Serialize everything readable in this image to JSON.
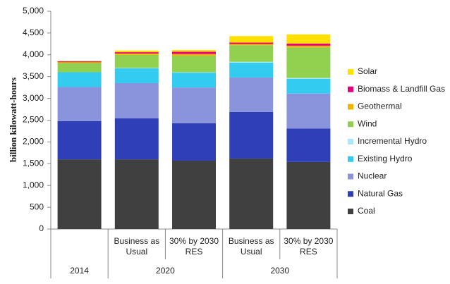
{
  "chart_data": {
    "type": "stacked_bar",
    "y_label": "billion kilowatt-hours",
    "categories": [
      null,
      "Business as Usual",
      "30% by 2030 RES",
      "Business as Usual",
      "30% by 2030 RES"
    ],
    "groups": [
      {
        "name": "2014",
        "count": 1
      },
      {
        "name": "2020",
        "count": 2
      },
      {
        "name": "2030",
        "count": 2
      }
    ],
    "ylim": [
      0,
      5000
    ],
    "yticks": [
      0,
      500,
      {
        "value": 1000,
        "label": "1,000"
      },
      {
        "value": 1500,
        "label": "1,500"
      },
      {
        "value": 2000,
        "label": "2,000"
      },
      {
        "value": 2500,
        "label": "2,500"
      },
      {
        "value": 3000,
        "label": "3,000"
      },
      {
        "value": 3500,
        "label": "3,500"
      },
      {
        "value": 4000,
        "label": "4,000"
      },
      {
        "value": 4500,
        "label": "4,500"
      },
      {
        "value": 5000,
        "label": "5,000"
      }
    ],
    "series": [
      {
        "name": "Coal",
        "color": "#404040",
        "values": [
          1600,
          1600,
          1570,
          1620,
          1540
        ]
      },
      {
        "name": "Natural Gas",
        "color": "#2e3fb8",
        "values": [
          880,
          940,
          860,
          1070,
          770
        ]
      },
      {
        "name": "Nuclear",
        "color": "#8a94dc",
        "values": [
          780,
          810,
          820,
          790,
          800
        ]
      },
      {
        "name": "Existing Hydro",
        "color": "#33ccf0",
        "values": [
          340,
          340,
          340,
          340,
          340
        ]
      },
      {
        "name": "Incremental Hydro",
        "color": "#a8e8fa",
        "values": [
          0,
          10,
          10,
          20,
          20
        ]
      },
      {
        "name": "Wind",
        "color": "#92d050",
        "values": [
          210,
          300,
          380,
          380,
          700
        ]
      },
      {
        "name": "Geothermal",
        "color": "#f0b400",
        "values": [
          20,
          30,
          40,
          30,
          40
        ]
      },
      {
        "name": "Biomass & Landfill Gas",
        "color": "#e6007e",
        "values": [
          20,
          30,
          50,
          30,
          50
        ]
      },
      {
        "name": "Solar",
        "color": "#ffe000",
        "values": [
          10,
          40,
          40,
          150,
          210
        ]
      }
    ]
  }
}
